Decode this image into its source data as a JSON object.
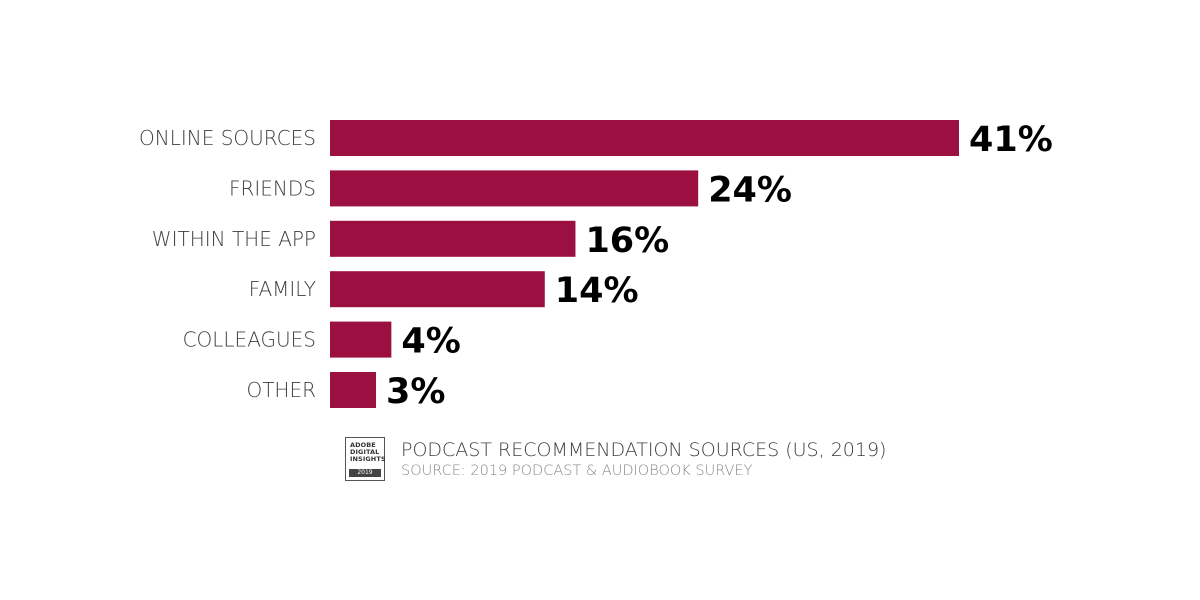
{
  "chart_data": {
    "type": "bar",
    "orientation": "horizontal",
    "categories": [
      "ONLINE SOURCES",
      "FRIENDS",
      "WITHIN THE APP",
      "FAMILY",
      "COLLEAGUES",
      "OTHER"
    ],
    "values": [
      41,
      24,
      16,
      14,
      4,
      3
    ],
    "value_labels": [
      "41%",
      "24%",
      "16%",
      "14%",
      "4%",
      "3%"
    ],
    "unit": "%",
    "bar_color": "#9b1040",
    "grid": false,
    "legend": "none"
  },
  "footer": {
    "title": "PODCAST RECOMMENDATION SOURCES (US, 2019)",
    "source": "SOURCE: 2019 PODCAST & AUDIOBOOK SURVEY",
    "logo": {
      "icon": "adobe-digital-insights-logo",
      "lines": [
        "ADOBE",
        "DIGITAL",
        "INSIGHTS"
      ],
      "year": "2019"
    }
  }
}
